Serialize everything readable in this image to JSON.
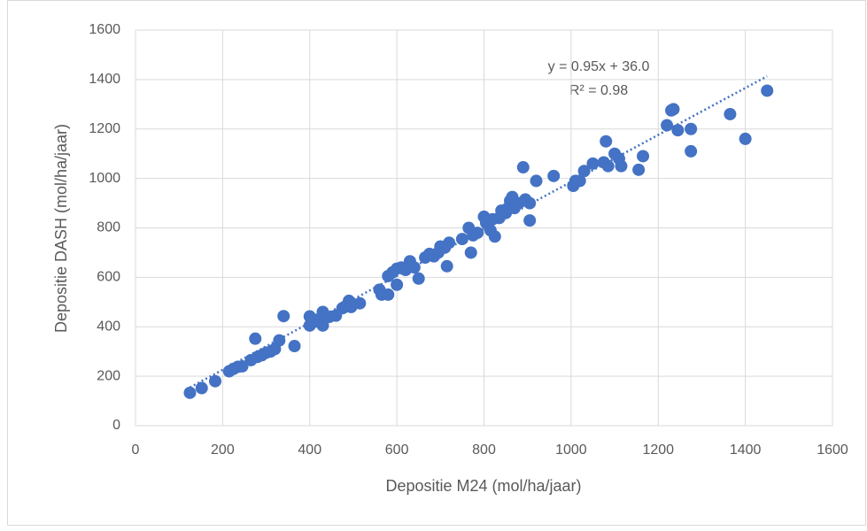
{
  "chart_data": {
    "type": "scatter",
    "xlabel": "Depositie M24 (mol/ha/jaar)",
    "ylabel": "Depositie DASH (mol/ha/jaar)",
    "x": [
      125,
      152,
      183,
      215,
      225,
      235,
      245,
      265,
      275,
      280,
      290,
      300,
      310,
      320,
      330,
      340,
      365,
      400,
      400,
      410,
      420,
      430,
      430,
      445,
      460,
      475,
      480,
      490,
      495,
      515,
      560,
      565,
      580,
      580,
      590,
      600,
      600,
      610,
      620,
      630,
      640,
      650,
      665,
      675,
      685,
      695,
      700,
      710,
      715,
      720,
      750,
      765,
      770,
      775,
      785,
      800,
      805,
      815,
      820,
      825,
      835,
      840,
      850,
      855,
      860,
      865,
      870,
      880,
      890,
      895,
      905,
      905,
      920,
      960,
      1005,
      1010,
      1020,
      1030,
      1050,
      1075,
      1080,
      1085,
      1100,
      1110,
      1115,
      1155,
      1165,
      1220,
      1230,
      1235,
      1245,
      1275,
      1275,
      1365,
      1400,
      1450
    ],
    "values": [
      133,
      152,
      180,
      220,
      230,
      238,
      240,
      265,
      352,
      278,
      285,
      295,
      300,
      310,
      345,
      443,
      322,
      405,
      442,
      420,
      430,
      460,
      405,
      440,
      445,
      475,
      480,
      505,
      480,
      495,
      550,
      530,
      530,
      605,
      620,
      635,
      570,
      640,
      630,
      665,
      640,
      595,
      680,
      695,
      685,
      700,
      725,
      720,
      645,
      740,
      755,
      800,
      700,
      770,
      780,
      845,
      820,
      790,
      835,
      765,
      840,
      870,
      860,
      880,
      910,
      925,
      880,
      900,
      1045,
      915,
      900,
      830,
      990,
      1010,
      970,
      990,
      990,
      1030,
      1060,
      1065,
      1150,
      1050,
      1100,
      1080,
      1050,
      1035,
      1090,
      1215,
      1275,
      1280,
      1195,
      1110,
      1200,
      1260,
      1160,
      1355
    ],
    "color": "#4472c4",
    "trendline": {
      "slope": 0.95,
      "intercept": 36.0,
      "color": "#4472c4",
      "equation": "y = 0.95x + 36.0",
      "r2": "R² = 0.98"
    },
    "xlim": [
      0,
      1600
    ],
    "xticks": [
      0,
      200,
      400,
      600,
      800,
      1000,
      1200,
      1400,
      1600
    ],
    "ylim": [
      0,
      1600
    ],
    "yticks": [
      0,
      200,
      400,
      600,
      800,
      1000,
      1200,
      1400,
      1600
    ],
    "grid": true
  }
}
